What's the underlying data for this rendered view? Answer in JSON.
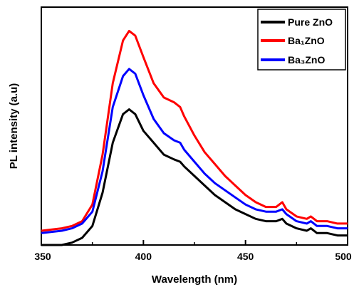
{
  "chart_data": {
    "type": "line",
    "title": "",
    "xlabel": "Wavelength (nm)",
    "ylabel": "PL intensity (a.u)",
    "xlim": [
      350,
      500
    ],
    "ylim": [
      0,
      1
    ],
    "x_ticks": [
      350,
      400,
      450,
      500
    ],
    "x_tick_labels": [
      "350",
      "400",
      "450",
      "500"
    ],
    "y_ticks_labeled": false,
    "grid": false,
    "legend_position": "top-right",
    "legend": [
      {
        "label": "Pure ZnO",
        "color": "#000000"
      },
      {
        "label": "Ba₁ZnO",
        "color": "#ff0000"
      },
      {
        "label": "Ba₃ZnO",
        "color": "#0000ff"
      }
    ],
    "series": [
      {
        "name": "Pure ZnO",
        "color": "#000000",
        "x": [
          350,
          360,
          365,
          370,
          375,
          380,
          385,
          390,
          393,
          396,
          400,
          405,
          410,
          415,
          418,
          420,
          425,
          430,
          435,
          440,
          445,
          450,
          455,
          460,
          465,
          468,
          470,
          475,
          480,
          482,
          485,
          490,
          495,
          500
        ],
        "y": [
          0.0,
          0.0,
          0.01,
          0.03,
          0.08,
          0.22,
          0.43,
          0.55,
          0.57,
          0.55,
          0.48,
          0.43,
          0.38,
          0.36,
          0.35,
          0.33,
          0.29,
          0.25,
          0.21,
          0.18,
          0.15,
          0.13,
          0.11,
          0.1,
          0.1,
          0.11,
          0.09,
          0.07,
          0.06,
          0.07,
          0.05,
          0.05,
          0.04,
          0.04
        ]
      },
      {
        "name": "Ba₁ZnO",
        "color": "#ff0000",
        "x": [
          350,
          360,
          365,
          370,
          375,
          380,
          385,
          390,
          393,
          396,
          400,
          405,
          410,
          415,
          418,
          420,
          425,
          430,
          435,
          440,
          445,
          450,
          455,
          460,
          465,
          468,
          470,
          475,
          480,
          482,
          485,
          490,
          495,
          500
        ],
        "y": [
          0.06,
          0.07,
          0.08,
          0.1,
          0.17,
          0.38,
          0.68,
          0.86,
          0.9,
          0.88,
          0.79,
          0.68,
          0.62,
          0.6,
          0.58,
          0.54,
          0.46,
          0.39,
          0.34,
          0.29,
          0.25,
          0.21,
          0.18,
          0.16,
          0.16,
          0.18,
          0.15,
          0.12,
          0.11,
          0.12,
          0.1,
          0.1,
          0.09,
          0.09
        ]
      },
      {
        "name": "Ba₃ZnO",
        "color": "#0000ff",
        "x": [
          350,
          360,
          365,
          370,
          375,
          380,
          385,
          390,
          393,
          396,
          400,
          405,
          410,
          415,
          418,
          420,
          425,
          430,
          435,
          440,
          445,
          450,
          455,
          460,
          465,
          468,
          470,
          475,
          480,
          482,
          485,
          490,
          495,
          500
        ],
        "y": [
          0.05,
          0.06,
          0.07,
          0.09,
          0.14,
          0.31,
          0.58,
          0.71,
          0.74,
          0.72,
          0.63,
          0.53,
          0.47,
          0.44,
          0.43,
          0.4,
          0.35,
          0.3,
          0.26,
          0.23,
          0.2,
          0.17,
          0.15,
          0.14,
          0.14,
          0.15,
          0.13,
          0.1,
          0.09,
          0.1,
          0.08,
          0.08,
          0.07,
          0.07
        ]
      }
    ]
  }
}
